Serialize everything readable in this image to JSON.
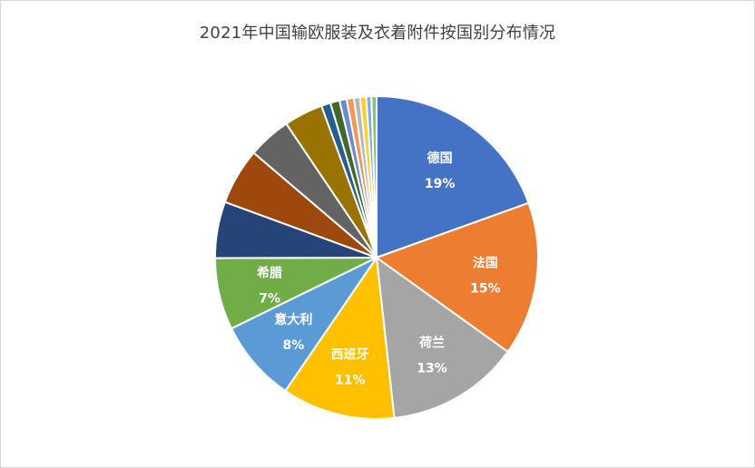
{
  "chart_data": {
    "type": "pie",
    "title": "2021年中国输欧服装及衣着附件按国别分布情况",
    "slices": [
      {
        "name": "德国",
        "value": 19,
        "label": "19%",
        "color": "#4472C4"
      },
      {
        "name": "法国",
        "value": 15,
        "label": "15%",
        "color": "#ED7D31"
      },
      {
        "name": "荷兰",
        "value": 13,
        "label": "13%",
        "color": "#A5A5A5"
      },
      {
        "name": "西班牙",
        "value": 11,
        "label": "11%",
        "color": "#FFC000"
      },
      {
        "name": "意大利",
        "value": 8,
        "label": "8%",
        "color": "#5B9BD5"
      },
      {
        "name": "希腊",
        "value": 7,
        "label": "7%",
        "color": "#70AD47"
      },
      {
        "name": "",
        "value": 5.5,
        "label": "",
        "color": "#264478"
      },
      {
        "name": "",
        "value": 5.5,
        "label": "",
        "color": "#9E480E"
      },
      {
        "name": "",
        "value": 4.2,
        "label": "",
        "color": "#636363"
      },
      {
        "name": "",
        "value": 3.8,
        "label": "",
        "color": "#997300"
      },
      {
        "name": "",
        "value": 0.9,
        "label": "",
        "color": "#255E91"
      },
      {
        "name": "",
        "value": 0.9,
        "label": "",
        "color": "#43682B"
      },
      {
        "name": "",
        "value": 0.7,
        "label": "",
        "color": "#698ED0"
      },
      {
        "name": "",
        "value": 0.7,
        "label": "",
        "color": "#F1975A"
      },
      {
        "name": "",
        "value": 0.6,
        "label": "",
        "color": "#B7B7B7"
      },
      {
        "name": "",
        "value": 0.6,
        "label": "",
        "color": "#FFCD33"
      },
      {
        "name": "",
        "value": 0.5,
        "label": "",
        "color": "#7CAFDD"
      },
      {
        "name": "",
        "value": 0.5,
        "label": "",
        "color": "#8CC168"
      }
    ]
  }
}
